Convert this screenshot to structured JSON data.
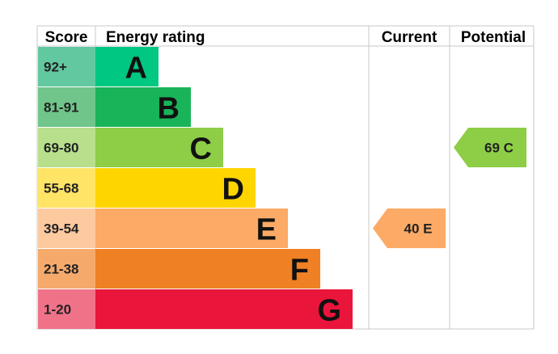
{
  "chart_data": {
    "type": "table",
    "headers": {
      "score": "Score",
      "rating": "Energy rating",
      "current": "Current",
      "potential": "Potential"
    },
    "bands": [
      {
        "score": "92+",
        "letter": "A",
        "bar_color": "#00c781",
        "score_bg": "#61c8a0"
      },
      {
        "score": "81-91",
        "letter": "B",
        "bar_color": "#19b459",
        "score_bg": "#6fc58a"
      },
      {
        "score": "69-80",
        "letter": "C",
        "bar_color": "#8dce46",
        "score_bg": "#b8df8c"
      },
      {
        "score": "55-68",
        "letter": "D",
        "bar_color": "#ffd500",
        "score_bg": "#ffe466"
      },
      {
        "score": "39-54",
        "letter": "E",
        "bar_color": "#fcaa65",
        "score_bg": "#fdcaa0"
      },
      {
        "score": "21-38",
        "letter": "F",
        "bar_color": "#ef8023",
        "score_bg": "#f5aa6c"
      },
      {
        "score": "1-20",
        "letter": "G",
        "bar_color": "#e9153b",
        "score_bg": "#f07289"
      }
    ],
    "current": {
      "label": "40 E",
      "value": 40,
      "band": "E",
      "color": "#fcaa65"
    },
    "potential": {
      "label": "69 C",
      "value": 69,
      "band": "C",
      "color": "#8dce46"
    },
    "grid_color": "#c8c8c8"
  }
}
